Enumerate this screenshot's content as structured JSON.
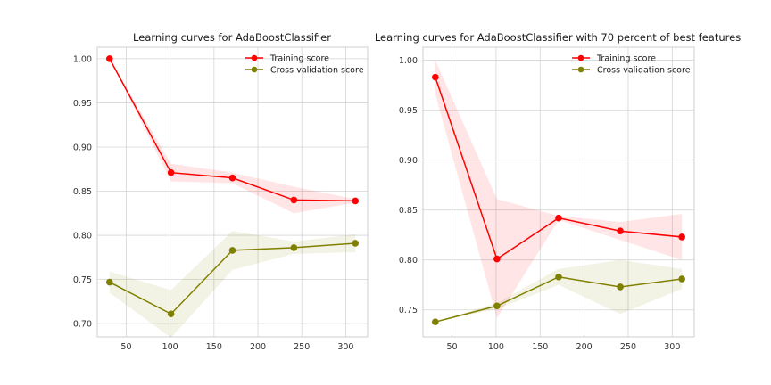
{
  "chart_data": [
    {
      "type": "line",
      "title": "Learning curves for AdaBoostClassifier",
      "x": [
        31,
        101,
        171,
        241,
        311
      ],
      "xticks": [
        50,
        100,
        150,
        200,
        250,
        300
      ],
      "yticks": [
        "0.70",
        "0.75",
        "0.80",
        "0.85",
        "0.90",
        "0.95",
        "1.00"
      ],
      "xlim": [
        17,
        325
      ],
      "ylim": [
        0.685,
        1.013
      ],
      "grid": true,
      "legend": "top-right",
      "series": [
        {
          "name": "Training score",
          "color": "#ff0000",
          "values": [
            1.0,
            0.871,
            0.865,
            0.84,
            0.839
          ],
          "band_low": [
            1.0,
            0.861,
            0.859,
            0.825,
            0.837
          ],
          "band_high": [
            1.0,
            0.881,
            0.871,
            0.855,
            0.841
          ]
        },
        {
          "name": "Cross-validation score",
          "color": "#808000",
          "values": [
            0.747,
            0.711,
            0.783,
            0.786,
            0.791
          ],
          "band_low": [
            0.735,
            0.684,
            0.761,
            0.779,
            0.781
          ],
          "band_high": [
            0.759,
            0.738,
            0.805,
            0.793,
            0.801
          ]
        }
      ]
    },
    {
      "type": "line",
      "title": "Learning curves for AdaBoostClassifier with 70 percent of best features",
      "x": [
        31,
        101,
        171,
        241,
        311
      ],
      "xticks": [
        50,
        100,
        150,
        200,
        250,
        300
      ],
      "yticks": [
        "0.75",
        "0.80",
        "0.85",
        "0.90",
        "0.95",
        "1.00"
      ],
      "xlim": [
        17,
        325
      ],
      "ylim": [
        0.723,
        1.013
      ],
      "grid": true,
      "legend": "top-right",
      "series": [
        {
          "name": "Training score",
          "color": "#ff0000",
          "values": [
            0.983,
            0.801,
            0.842,
            0.829,
            0.823
          ],
          "band_low": [
            0.966,
            0.742,
            0.84,
            0.82,
            0.8
          ],
          "band_high": [
            1.0,
            0.861,
            0.844,
            0.838,
            0.846
          ]
        },
        {
          "name": "Cross-validation score",
          "color": "#808000",
          "values": [
            0.738,
            0.754,
            0.783,
            0.773,
            0.781
          ],
          "band_low": [
            0.738,
            0.751,
            0.775,
            0.746,
            0.771
          ],
          "band_high": [
            0.738,
            0.757,
            0.791,
            0.8,
            0.791
          ]
        }
      ]
    }
  ]
}
